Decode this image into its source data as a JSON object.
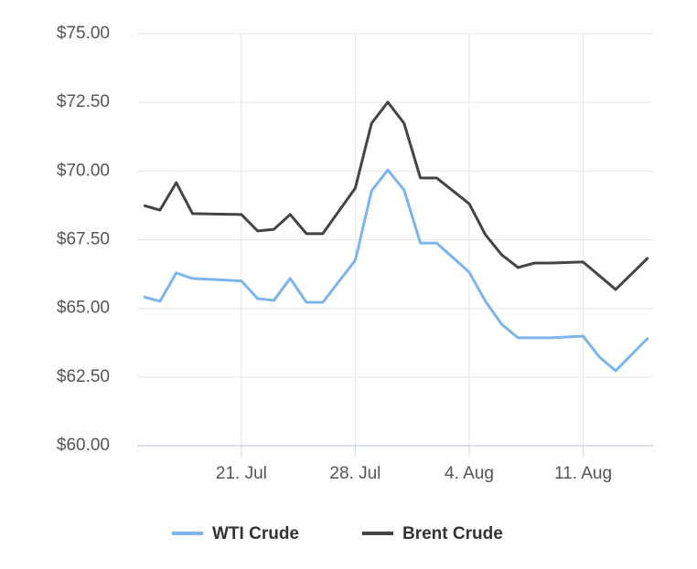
{
  "chart_data": {
    "type": "line",
    "x": [
      "15. Jul",
      "16. Jul",
      "17. Jul",
      "18. Jul",
      "21. Jul",
      "22. Jul",
      "23. Jul",
      "24. Jul",
      "25. Jul",
      "26. Jul",
      "28. Jul",
      "29. Jul",
      "30. Jul",
      "31. Jul",
      "1. Aug",
      "2. Aug",
      "4. Aug",
      "5. Aug",
      "6. Aug",
      "7. Aug",
      "8. Aug",
      "9. Aug",
      "11. Aug",
      "12. Aug",
      "13. Aug",
      "15. Aug"
    ],
    "series": [
      {
        "name": "WTI Crude",
        "color": "#7cb5ec",
        "values": [
          65.42,
          65.26,
          66.29,
          66.09,
          66.0,
          65.36,
          65.29,
          66.09,
          65.22,
          65.22,
          66.75,
          69.28,
          70.04,
          69.31,
          67.38,
          67.38,
          66.32,
          65.26,
          64.42,
          63.93,
          63.93,
          63.93,
          63.99,
          63.23,
          62.73,
          63.93
        ]
      },
      {
        "name": "Brent Crude",
        "color": "#434348",
        "values": [
          68.75,
          68.58,
          69.58,
          68.45,
          68.42,
          67.82,
          67.88,
          68.42,
          67.72,
          67.72,
          69.38,
          71.74,
          72.51,
          71.74,
          69.75,
          69.75,
          68.81,
          67.68,
          66.95,
          66.49,
          66.65,
          66.65,
          66.69,
          66.19,
          65.69,
          66.85
        ]
      }
    ],
    "xlim": [
      "15. Jul",
      "15. Aug"
    ],
    "xticks": [
      "21. Jul",
      "28. Jul",
      "4. Aug",
      "11. Aug"
    ],
    "ylim": [
      60,
      75
    ],
    "yticks": [
      {
        "value": 60,
        "label": "$60.00"
      },
      {
        "value": 62.5,
        "label": "$62.50"
      },
      {
        "value": 65,
        "label": "$65.00"
      },
      {
        "value": 67.5,
        "label": "$67.50"
      },
      {
        "value": 70,
        "label": "$70.00"
      },
      {
        "value": 72.5,
        "label": "$72.50"
      },
      {
        "value": 75,
        "label": "$75.00"
      }
    ],
    "grid": true
  }
}
